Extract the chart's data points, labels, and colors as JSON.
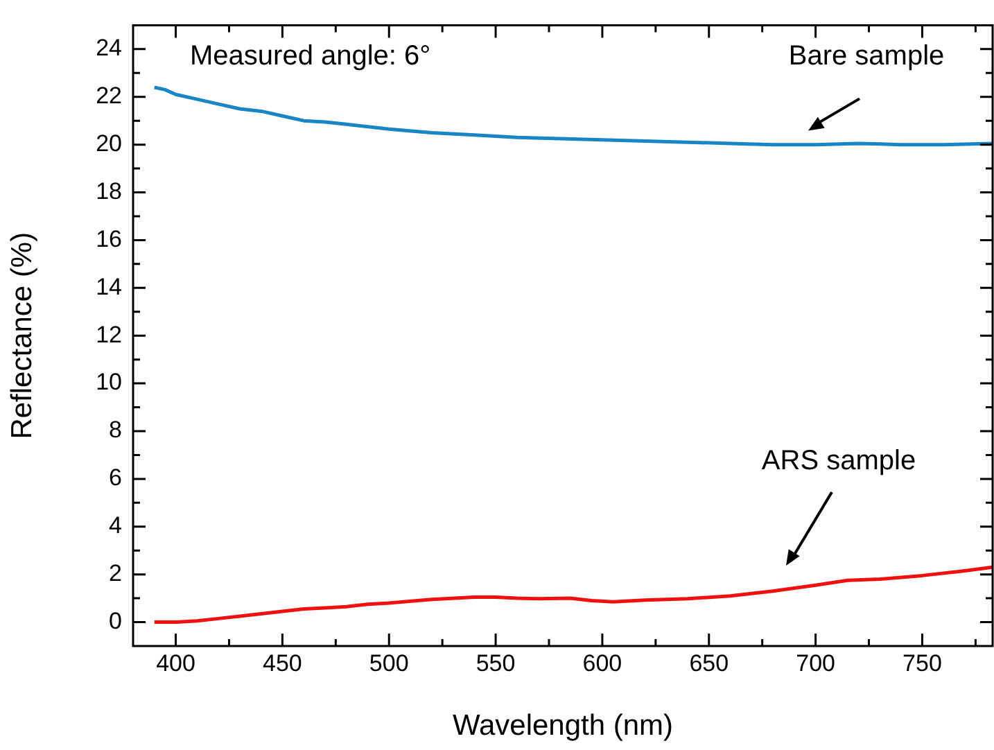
{
  "chart_data": {
    "type": "line",
    "xlabel": "Wavelength (nm)",
    "ylabel": "Reflectance (%)",
    "xlim": [
      380,
      783
    ],
    "ylim": [
      -1,
      25
    ],
    "xticks": [
      400,
      {
        "value": 425,
        "label": null
      },
      450,
      {
        "value": 475,
        "label": null
      },
      500,
      {
        "value": 525,
        "label": null
      },
      550,
      {
        "value": 575,
        "label": null
      },
      600,
      {
        "value": 625,
        "label": null
      },
      650,
      {
        "value": 675,
        "label": null
      },
      700,
      {
        "value": 725,
        "label": null
      },
      750,
      {
        "value": 775,
        "label": null
      }
    ],
    "yticks": [
      0,
      {
        "value": 1,
        "label": null
      },
      2,
      {
        "value": 3,
        "label": null
      },
      4,
      {
        "value": 5,
        "label": null
      },
      6,
      {
        "value": 7,
        "label": null
      },
      8,
      {
        "value": 9,
        "label": null
      },
      10,
      {
        "value": 11,
        "label": null
      },
      12,
      {
        "value": 13,
        "label": null
      },
      14,
      {
        "value": 15,
        "label": null
      },
      16,
      {
        "value": 17,
        "label": null
      },
      18,
      {
        "value": 19,
        "label": null
      },
      20,
      {
        "value": 21,
        "label": null
      },
      22,
      {
        "value": 23,
        "label": null
      },
      24
    ],
    "grid": false,
    "legend": false,
    "marker": "none",
    "line_style": "solid",
    "annotations": [
      "Measured angle: 6°",
      "Bare sample",
      "ARS sample"
    ],
    "series": [
      {
        "color": "#1a85c4",
        "x": [
          390,
          395,
          400,
          410,
          420,
          430,
          440,
          450,
          460,
          470,
          480,
          490,
          500,
          520,
          540,
          550,
          560,
          580,
          600,
          620,
          640,
          660,
          680,
          700,
          720,
          740,
          760,
          783
        ],
        "values": [
          22.4,
          22.3,
          22.1,
          21.9,
          21.7,
          21.5,
          21.4,
          21.2,
          21.0,
          20.95,
          20.85,
          20.75,
          20.65,
          20.5,
          20.4,
          20.35,
          20.3,
          20.25,
          20.2,
          20.15,
          20.1,
          20.05,
          20.0,
          20.0,
          20.05,
          20.0,
          20.0,
          20.05
        ]
      },
      {
        "color": "#f01010",
        "x": [
          390,
          400,
          410,
          420,
          430,
          440,
          450,
          460,
          470,
          480,
          490,
          500,
          520,
          540,
          550,
          560,
          570,
          585,
          595,
          605,
          620,
          640,
          660,
          680,
          700,
          715,
          730,
          750,
          770,
          783
        ],
        "values": [
          0.0,
          0.0,
          0.05,
          0.15,
          0.25,
          0.35,
          0.45,
          0.55,
          0.6,
          0.65,
          0.75,
          0.8,
          0.95,
          1.05,
          1.05,
          1.0,
          0.98,
          1.0,
          0.9,
          0.85,
          0.92,
          0.98,
          1.1,
          1.3,
          1.55,
          1.75,
          1.8,
          1.95,
          2.15,
          2.3
        ]
      }
    ]
  }
}
